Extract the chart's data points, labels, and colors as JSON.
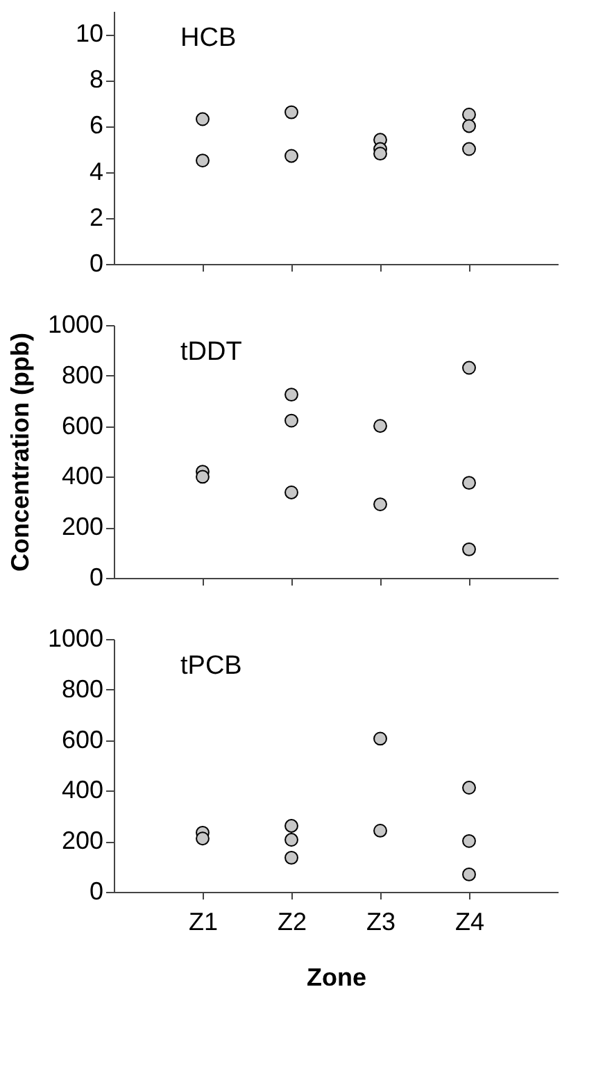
{
  "chart_data": [
    {
      "type": "scatter",
      "title": "HCB",
      "categories": [
        "Z1",
        "Z2",
        "Z3",
        "Z4"
      ],
      "ylim": [
        0,
        11
      ],
      "yticks": [
        0,
        2,
        4,
        6,
        8,
        10
      ],
      "grid": false,
      "marker": "circle",
      "tick_labels": "y",
      "series": [
        {
          "color": "#c8c8c8",
          "x": [
            "Z1",
            "Z1",
            "Z2",
            "Z2",
            "Z3",
            "Z3",
            "Z3",
            "Z4",
            "Z4",
            "Z4"
          ],
          "values": [
            6.3,
            4.5,
            6.6,
            4.7,
            5.4,
            5.0,
            4.8,
            6.5,
            6.0,
            5.0
          ]
        }
      ]
    },
    {
      "type": "scatter",
      "title": "tDDT",
      "ylabel": "Concentration (ppb)",
      "categories": [
        "Z1",
        "Z2",
        "Z3",
        "Z4"
      ],
      "ylim": [
        0,
        1000
      ],
      "yticks": [
        0,
        200,
        400,
        600,
        800,
        1000
      ],
      "grid": false,
      "marker": "circle",
      "tick_labels": "y",
      "series": [
        {
          "color": "#c8c8c8",
          "x": [
            "Z1",
            "Z1",
            "Z2",
            "Z2",
            "Z2",
            "Z3",
            "Z3",
            "Z4",
            "Z4",
            "Z4"
          ],
          "values": [
            420,
            400,
            725,
            622,
            338,
            601,
            291,
            831,
            376,
            113
          ]
        }
      ]
    },
    {
      "type": "scatter",
      "title": "tPCB",
      "xlabel": "Zone",
      "categories": [
        "Z1",
        "Z2",
        "Z3",
        "Z4"
      ],
      "ylim": [
        0,
        1000
      ],
      "yticks": [
        0,
        200,
        400,
        600,
        800,
        1000
      ],
      "grid": false,
      "marker": "circle",
      "series": [
        {
          "color": "#c8c8c8",
          "x": [
            "Z1",
            "Z1",
            "Z2",
            "Z2",
            "Z2",
            "Z3",
            "Z3",
            "Z4",
            "Z4",
            "Z4"
          ],
          "values": [
            234,
            211,
            261,
            206,
            135,
            606,
            242,
            412,
            201,
            69
          ]
        }
      ]
    }
  ]
}
